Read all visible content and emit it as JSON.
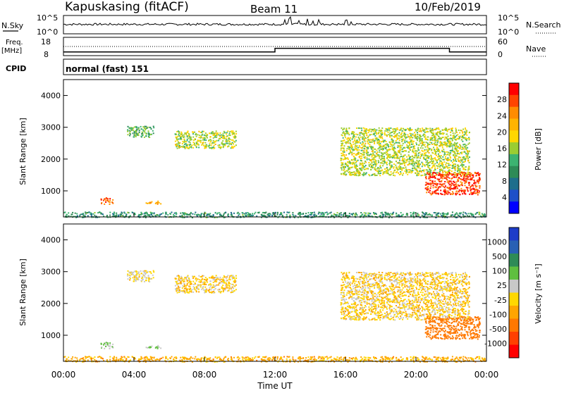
{
  "header": {
    "station": "Kapuskasing (fitACF)",
    "beam": "Beam 11",
    "date": "10/Feb/2019"
  },
  "panels": {
    "nsky": {
      "label": "N.Sky",
      "ticks": [
        "10^5",
        "10^0"
      ],
      "right_ticks": [
        "10^5",
        "10^0"
      ],
      "right_label": "N.Search"
    },
    "freq": {
      "label_line1": "Freq.",
      "label_line2": "[MHz]",
      "ticks": [
        "18",
        "8"
      ],
      "right_ticks": [
        "60",
        "0"
      ],
      "right_label": "Nave"
    },
    "cpid": {
      "label": "CPID",
      "value": "normal (fast) 151"
    }
  },
  "power_panel": {
    "ylabel": "Slant Range [km]",
    "yticks": [
      "4000",
      "3000",
      "2000",
      "1000"
    ],
    "colorbar_label": "Power [dB]",
    "colorbar_ticks": [
      "28",
      "24",
      "20",
      "16",
      "12",
      "8",
      "4"
    ],
    "colorbar_colors": [
      "#ff0000",
      "#ff4500",
      "#ff8c00",
      "#ffb400",
      "#ffd700",
      "#9acd32",
      "#3cb371",
      "#2e8b57",
      "#1e6e8c",
      "#1e50c8",
      "#0000ff"
    ]
  },
  "velocity_panel": {
    "ylabel": "Slant Range [km]",
    "yticks": [
      "4000",
      "3000",
      "2000",
      "1000"
    ],
    "colorbar_label": "Velocity [m s⁻¹]",
    "colorbar_ticks": [
      "1000",
      "500",
      "100",
      "25",
      "-25",
      "-100",
      "-500",
      "-1000"
    ],
    "colorbar_colors": [
      "#1e3cc8",
      "#2860b4",
      "#2e8b57",
      "#5fbf3f",
      "#c8c8c8",
      "#ffd700",
      "#ffa500",
      "#ff7800",
      "#ff4000",
      "#ff0000"
    ]
  },
  "xaxis": {
    "ticks": [
      "00:00",
      "04:00",
      "08:00",
      "12:00",
      "16:00",
      "20:00",
      "00:00"
    ],
    "label": "Time UT"
  },
  "chart_data": {
    "type": "heatmap",
    "title": "Kapuskasing (fitACF)   Beam 11   10/Feb/2019",
    "xlabel": "Time UT",
    "ylabel": "Slant Range [km]",
    "xlim": [
      0,
      24
    ],
    "ylim": [
      180,
      4500
    ],
    "freq_steps": [
      {
        "t0": 0,
        "t1": 12,
        "freq_mhz": 10
      },
      {
        "t0": 12,
        "t1": 21.9,
        "freq_mhz": 12
      },
      {
        "t0": 21.9,
        "t1": 24,
        "freq_mhz": 10
      }
    ],
    "echo_regions": [
      {
        "t0": 3.6,
        "t1": 5.1,
        "r0": 2700,
        "r1": 3050,
        "power_db": 10,
        "velocity": 25
      },
      {
        "t0": 6.3,
        "t1": 9.8,
        "r0": 2350,
        "r1": 2900,
        "power_db": 14,
        "velocity": 0
      },
      {
        "t0": 2.1,
        "t1": 2.8,
        "r0": 600,
        "r1": 800,
        "power_db": 24,
        "velocity": 100
      },
      {
        "t0": 4.6,
        "t1": 5.5,
        "r0": 600,
        "r1": 700,
        "power_db": 20,
        "velocity": 100
      },
      {
        "t0": 0,
        "t1": 23.9,
        "r0": 180,
        "r1": 350,
        "power_db": 8,
        "velocity": -50
      },
      {
        "t0": 15.7,
        "t1": 23,
        "r0": 1500,
        "r1": 3000,
        "power_db": 14,
        "velocity": 0
      },
      {
        "t0": 20.5,
        "t1": 23.6,
        "r0": 900,
        "r1": 1600,
        "power_db": 26,
        "velocity": -300
      }
    ]
  }
}
